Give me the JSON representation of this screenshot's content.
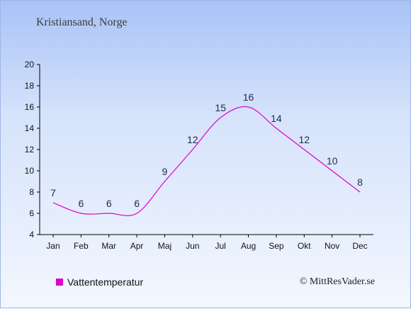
{
  "header": {
    "place": "Kristiansand, Norge"
  },
  "legend": {
    "label": "Vattentemperatur",
    "color": "#dd00cc"
  },
  "footer": {
    "copyright": "© MittResVader.se"
  },
  "chart_data": {
    "type": "line",
    "categories": [
      "Jan",
      "Feb",
      "Mar",
      "Apr",
      "Maj",
      "Jun",
      "Jul",
      "Aug",
      "Sep",
      "Okt",
      "Nov",
      "Dec"
    ],
    "series": [
      {
        "name": "Vattentemperatur",
        "values": [
          7,
          6,
          6,
          6,
          9,
          12,
          15,
          16,
          14,
          12,
          10,
          8
        ],
        "color": "#dd00cc"
      }
    ],
    "ylim": [
      4,
      20
    ],
    "yticks": [
      4,
      6,
      8,
      10,
      12,
      14,
      16,
      18,
      20
    ],
    "grid": false,
    "legend_position": "bottom-left"
  }
}
